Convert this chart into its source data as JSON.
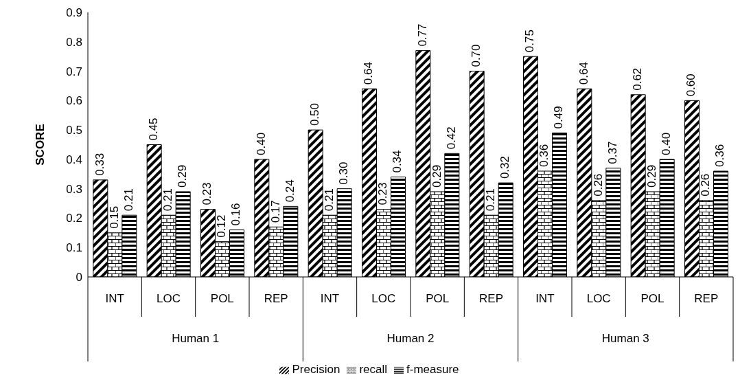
{
  "chart_data": {
    "type": "bar",
    "ylabel": "SCORE",
    "categories": [
      "INT",
      "LOC",
      "POL",
      "REP",
      "INT",
      "LOC",
      "POL",
      "REP",
      "INT",
      "LOC",
      "POL",
      "REP"
    ],
    "annotations": [
      "Human 1",
      "Human 2",
      "Human 3"
    ],
    "series": [
      {
        "name": "Precision",
        "color": "#000000",
        "values": [
          0.33,
          0.45,
          0.23,
          0.4,
          0.5,
          0.64,
          0.77,
          0.7,
          0.75,
          0.64,
          0.62,
          0.6
        ],
        "value_labels": [
          "0.33",
          "0.45",
          "0.23",
          "0.40",
          "0.50",
          "0.64",
          "0.77",
          "0.70",
          "0.75",
          "0.64",
          "0.62",
          "0.60"
        ]
      },
      {
        "name": "recall",
        "color": "#000000",
        "values": [
          0.15,
          0.21,
          0.12,
          0.17,
          0.21,
          0.23,
          0.29,
          0.21,
          0.36,
          0.26,
          0.29,
          0.26
        ],
        "value_labels": [
          "0.15",
          "0.21",
          "0.12",
          "0.17",
          "0.21",
          "0.23",
          "0.29",
          "0.21",
          "0.36",
          "0.26",
          "0.29",
          "0.26"
        ]
      },
      {
        "name": "f-measure",
        "color": "#000000",
        "values": [
          0.21,
          0.29,
          0.16,
          0.24,
          0.3,
          0.34,
          0.42,
          0.32,
          0.49,
          0.37,
          0.4,
          0.36
        ],
        "value_labels": [
          "0.21",
          "0.29",
          "0.16",
          "0.24",
          "0.30",
          "0.34",
          "0.42",
          "0.32",
          "0.49",
          "0.37",
          "0.40",
          "0.36"
        ]
      }
    ],
    "ylim": [
      0,
      0.9
    ],
    "yticks": [
      0,
      0.1,
      0.2,
      0.3,
      0.4,
      0.5,
      0.6,
      0.7,
      0.8,
      0.9
    ],
    "grid": false,
    "legend": "bottom"
  }
}
